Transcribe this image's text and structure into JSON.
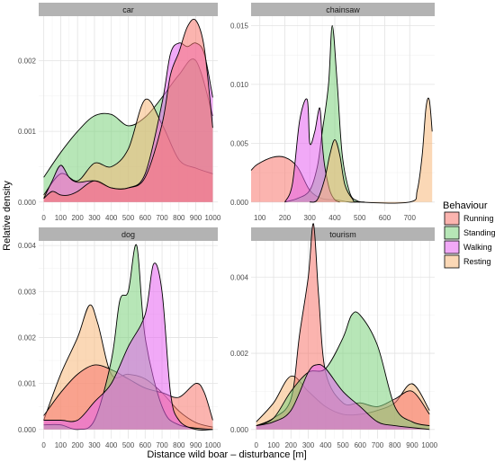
{
  "chart_data": {
    "type": "area",
    "subtype": "facetted density",
    "xlabel": "Distance wild boar – disturbance [m]",
    "ylabel": "Relative density",
    "legend": {
      "title": "Behaviour",
      "placement": "right",
      "entries": [
        {
          "name": "Running",
          "color": "#f8766d"
        },
        {
          "name": "Standing",
          "color": "#7cd27c"
        },
        {
          "name": "Walking",
          "color": "#e563f0"
        },
        {
          "name": "Resting",
          "color": "#f7b87a"
        }
      ]
    },
    "facets": [
      {
        "title": "car",
        "xlim": [
          -30,
          1030
        ],
        "ylim": [
          -0.00013,
          0.00263
        ],
        "x_ticks": [
          0,
          100,
          200,
          300,
          400,
          500,
          600,
          700,
          800,
          900,
          1000
        ],
        "x_tick_labels": [
          "0",
          "100",
          "200",
          "300",
          "400",
          "500",
          "600",
          "700",
          "800",
          "900",
          "1000"
        ],
        "y_ticks": [
          0,
          0.001,
          0.002
        ],
        "y_tick_labels": [
          "0.000",
          "0.001",
          "0.002"
        ],
        "series": [
          {
            "name": "Standing",
            "x": [
              0,
              100,
              200,
              300,
              400,
              500,
              600,
              700,
              800,
              900,
              1000
            ],
            "y": [
              0.00035,
              0.0007,
              0.001,
              0.00122,
              0.00124,
              0.00108,
              0.0012,
              0.00148,
              0.0018,
              0.002,
              0.00122
            ]
          },
          {
            "name": "Resting",
            "x": [
              0,
              100,
              200,
              300,
              400,
              500,
              600,
              700,
              800,
              900,
              1000
            ],
            "y": [
              0.0001,
              0.0004,
              0.0003,
              0.00055,
              0.0005,
              0.00075,
              0.00145,
              0.0011,
              0.0006,
              0.00048,
              0.0004
            ]
          },
          {
            "name": "Walking",
            "x": [
              0,
              50,
              100,
              150,
              200,
              300,
              400,
              500,
              600,
              700,
              750,
              800,
              850,
              900,
              950,
              1000
            ],
            "y": [
              5e-05,
              0.0003,
              0.00052,
              0.00035,
              0.00028,
              0.0003,
              0.0002,
              0.0002,
              0.0004,
              0.0014,
              0.0021,
              0.00225,
              0.0022,
              0.00225,
              0.0021,
              0.00148
            ]
          },
          {
            "name": "Running",
            "x": [
              0,
              50,
              100,
              150,
              200,
              300,
              400,
              500,
              600,
              700,
              750,
              800,
              850,
              900,
              950,
              1000
            ],
            "y": [
              5e-05,
              0.00015,
              0.0001,
              0.0001,
              0.00015,
              0.0003,
              0.0002,
              0.0002,
              0.00035,
              0.0011,
              0.0018,
              0.00212,
              0.00248,
              0.00257,
              0.00218,
              0.00105
            ]
          }
        ]
      },
      {
        "title": "chainsaw",
        "xlim": [
          65,
          800
        ],
        "ylim": [
          -0.00078,
          0.0158
        ],
        "x_ticks": [
          100,
          200,
          300,
          400,
          500,
          600,
          700
        ],
        "x_tick_labels": [
          "100",
          "200",
          "300",
          "400",
          "500",
          "600",
          "700"
        ],
        "y_ticks": [
          0,
          0.005,
          0.01,
          0.015
        ],
        "y_tick_labels": [
          "0.000",
          "0.005",
          "0.010",
          "0.015"
        ],
        "series": [
          {
            "name": "Running",
            "x": [
              65,
              90,
              150,
              200,
              250,
              300,
              350,
              400,
              430,
              460,
              500
            ],
            "y": [
              0.0027,
              0.0032,
              0.0038,
              0.0038,
              0.003,
              0.001,
              0.0003,
              0.0002,
              0.0001,
              0,
              0
            ]
          },
          {
            "name": "Standing",
            "x": [
              200,
              250,
              300,
              330,
              350,
              375,
              390,
              410,
              430,
              460,
              490,
              520
            ],
            "y": [
              0,
              0.0003,
              0.001,
              0.003,
              0.006,
              0.01,
              0.015,
              0.01,
              0.004,
              0.0008,
              0.0001,
              0
            ]
          },
          {
            "name": "Walking",
            "x": [
              200,
              230,
              260,
              290,
              300,
              320,
              340,
              350,
              360,
              380,
              400,
              420
            ],
            "y": [
              0,
              0.0015,
              0.007,
              0.0087,
              0.005,
              0.006,
              0.008,
              0.005,
              0.003,
              0.001,
              0.0002,
              0
            ]
          },
          {
            "name": "Resting",
            "x": [
              300,
              330,
              360,
              380,
              400,
              420,
              440,
              470,
              500,
              700,
              730,
              750,
              765,
              778,
              790
            ],
            "y": [
              0,
              0.0002,
              0.002,
              0.004,
              0.0053,
              0.004,
              0.0015,
              0.0003,
              0,
              0,
              0.001,
              0.004,
              0.008,
              0.0087,
              0.006
            ]
          }
        ]
      },
      {
        "title": "dog",
        "xlim": [
          -30,
          1030
        ],
        "ylim": [
          -0.0002,
          0.0041
        ],
        "x_ticks": [
          0,
          100,
          200,
          300,
          400,
          500,
          600,
          700,
          800,
          900,
          1000
        ],
        "x_tick_labels": [
          "0",
          "100",
          "200",
          "300",
          "400",
          "500",
          "600",
          "700",
          "800",
          "900",
          "1000"
        ],
        "y_ticks": [
          0,
          0.001,
          0.002,
          0.003,
          0.004
        ],
        "y_tick_labels": [
          "0.000",
          "0.001",
          "0.002",
          "0.003",
          "0.004"
        ],
        "series": [
          {
            "name": "Resting",
            "x": [
              0,
              100,
              200,
              270,
              320,
              400,
              500,
              600,
              700,
              800,
              900,
              1000
            ],
            "y": [
              0.0002,
              0.0012,
              0.002,
              0.0027,
              0.0023,
              0.0012,
              0.0012,
              0.0011,
              0.0008,
              0.0004,
              0.00015,
              5e-05
            ]
          },
          {
            "name": "Running",
            "x": [
              0,
              100,
              200,
              300,
              400,
              500,
              600,
              700,
              800,
              900,
              950,
              1000
            ],
            "y": [
              0.0003,
              0.0008,
              0.0012,
              0.0014,
              0.0013,
              0.0011,
              0.0009,
              0.0008,
              0.0007,
              0.001,
              0.0008,
              0.0002
            ]
          },
          {
            "name": "Standing",
            "x": [
              0,
              100,
              200,
              300,
              400,
              450,
              500,
              550,
              600,
              700,
              800,
              1000
            ],
            "y": [
              0.0001,
              0.0001,
              0,
              0.0002,
              0.0015,
              0.0028,
              0.003,
              0.004,
              0.002,
              0.0005,
              0.0001,
              0
            ]
          },
          {
            "name": "Walking",
            "x": [
              0,
              100,
              200,
              300,
              400,
              500,
              600,
              650,
              700,
              750,
              800,
              900,
              1000
            ],
            "y": [
              0.0002,
              0.0002,
              0.0002,
              0.0006,
              0.001,
              0.0018,
              0.0025,
              0.0036,
              0.003,
              0.0008,
              0.0002,
              0,
              0
            ]
          }
        ]
      },
      {
        "title": "tourism",
        "xlim": [
          -30,
          1030
        ],
        "ylim": [
          -0.00024,
          0.00495
        ],
        "x_ticks": [
          0,
          100,
          200,
          300,
          400,
          500,
          600,
          700,
          800,
          900,
          1000
        ],
        "x_tick_labels": [
          "0",
          "100",
          "200",
          "300",
          "400",
          "500",
          "600",
          "700",
          "800",
          "900",
          "1000"
        ],
        "y_ticks": [
          0,
          0.002,
          0.004
        ],
        "y_tick_labels": [
          "0.000",
          "0.002",
          "0.004"
        ],
        "series": [
          {
            "name": "Resting",
            "x": [
              0,
              100,
              200,
              300,
              400,
              500,
              600,
              700,
              800,
              900,
              1000
            ],
            "y": [
              0.0002,
              0.0007,
              0.0014,
              0.001,
              0.0006,
              0.0004,
              0.0004,
              0.0005,
              0.0007,
              0.0012,
              0.0005
            ]
          },
          {
            "name": "Running",
            "x": [
              0,
              100,
              200,
              250,
              300,
              330,
              360,
              400,
              500,
              600,
              700,
              800,
              900,
              1000
            ],
            "y": [
              0.0001,
              0.0003,
              0.0008,
              0.0025,
              0.004,
              0.0054,
              0.0035,
              0.0015,
              0.0007,
              0.0007,
              0.0006,
              0.0008,
              0.001,
              0.0004
            ]
          },
          {
            "name": "Standing",
            "x": [
              0,
              100,
              200,
              300,
              400,
              500,
              550,
              600,
              700,
              800,
              900,
              1000
            ],
            "y": [
              0.0001,
              0.0003,
              0.001,
              0.0015,
              0.0016,
              0.0024,
              0.003,
              0.003,
              0.0022,
              0.0006,
              0.0002,
              0.0001
            ]
          },
          {
            "name": "Walking",
            "x": [
              0,
              100,
              200,
              300,
              350,
              400,
              500,
              600,
              700,
              800,
              1000
            ],
            "y": [
              0.0001,
              0.0002,
              0.0005,
              0.0015,
              0.0017,
              0.0016,
              0.001,
              0.0006,
              0.0002,
              0.0001,
              0
            ]
          }
        ]
      }
    ]
  }
}
